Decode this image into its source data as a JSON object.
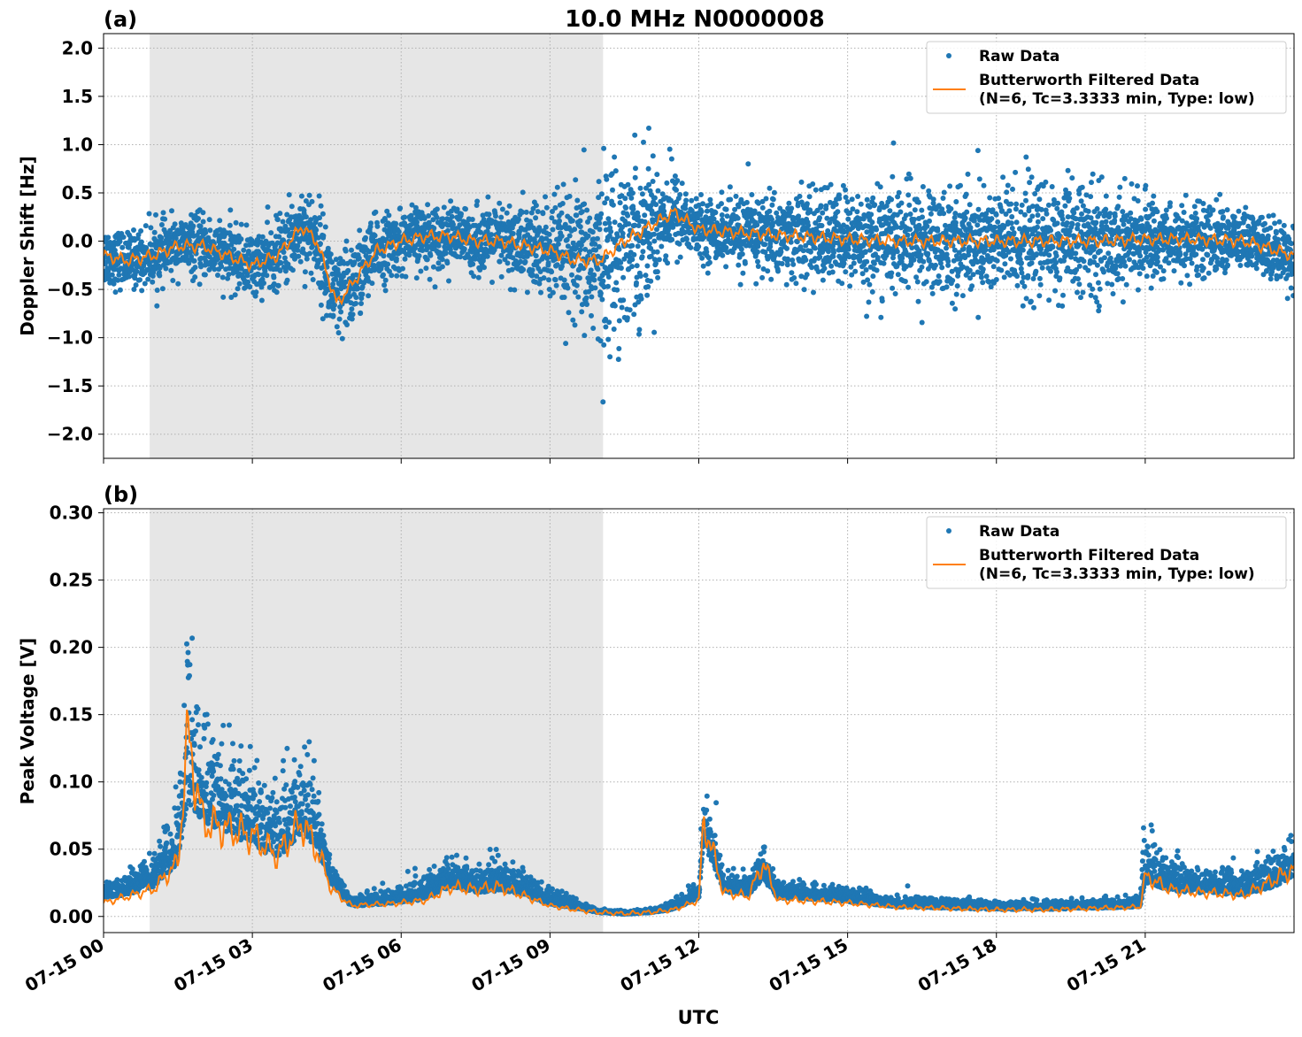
{
  "figure": {
    "title": "10.0 MHz N0000008",
    "xlabel": "UTC",
    "x_tick_labels": [
      "07-15 00",
      "07-15 03",
      "07-15 06",
      "07-15 09",
      "07-15 12",
      "07-15 15",
      "07-15 18",
      "07-15 21"
    ],
    "legend": {
      "raw": "Raw Data",
      "filt_line1": "Butterworth Filtered Data",
      "filt_line2": "(N=6, Tc=3.3333 min, Type: low)"
    },
    "colors": {
      "raw": "#1f77b4",
      "filtered": "#ff7f0e",
      "night_shade": "#e6e6e6"
    }
  },
  "chart_data": [
    {
      "panel_label": "(a)",
      "type": "scatter",
      "ylabel": "Doppler Shift [Hz]",
      "xlim_hours_utc": [
        0,
        24
      ],
      "ylim": [
        -2.25,
        2.15
      ],
      "yticks": [
        2.0,
        1.5,
        1.0,
        0.5,
        0.0,
        -0.5,
        -1.0,
        -1.5,
        -2.0
      ],
      "ytick_labels": [
        "2.0",
        "1.5",
        "1.0",
        "0.5",
        "0.0",
        "−0.5",
        "−1.0",
        "−1.5",
        "−2.0"
      ],
      "shaded_interval_hours_utc": [
        0.93,
        10.07
      ],
      "grid": true,
      "legend_position": "top-right",
      "series": [
        {
          "name": "Raw Data",
          "kind": "scatter",
          "note_values": "dense points spread around filtered curve",
          "x": [
            0,
            0.5,
            1,
            1.5,
            2,
            2.5,
            3,
            3.5,
            4,
            4.3,
            4.7,
            5,
            5.5,
            6,
            6.5,
            7,
            7.5,
            8,
            8.5,
            9,
            9.5,
            10,
            10.5,
            11,
            11.5,
            12,
            13,
            14,
            15,
            16,
            17,
            18,
            19,
            20,
            21,
            22,
            23,
            24
          ],
          "spread": [
            0.35,
            0.3,
            0.35,
            0.3,
            0.35,
            0.35,
            0.35,
            0.4,
            0.45,
            0.5,
            0.55,
            0.5,
            0.4,
            0.35,
            0.35,
            0.35,
            0.35,
            0.4,
            0.5,
            0.6,
            0.7,
            1.0,
            1.0,
            0.8,
            0.5,
            0.3,
            0.45,
            0.5,
            0.55,
            0.6,
            0.6,
            0.65,
            0.65,
            0.6,
            0.45,
            0.4,
            0.35,
            0.35
          ]
        },
        {
          "name": "Butterworth Filtered Data (N=6, Tc=3.3333 min, Type: low)",
          "kind": "line",
          "x": [
            0,
            0.5,
            1,
            1.5,
            2,
            2.5,
            3,
            3.5,
            4,
            4.3,
            4.7,
            5,
            5.5,
            6,
            6.5,
            7,
            7.5,
            8,
            8.5,
            9,
            9.5,
            10,
            10.5,
            11,
            11.5,
            12,
            13,
            14,
            15,
            16,
            17,
            18,
            19,
            20,
            21,
            22,
            23,
            24
          ],
          "y": [
            -0.15,
            -0.2,
            -0.15,
            -0.05,
            -0.05,
            -0.15,
            -0.25,
            -0.15,
            0.15,
            0.0,
            -0.65,
            -0.45,
            -0.1,
            0.0,
            0.05,
            0.05,
            0.0,
            0.0,
            -0.05,
            -0.1,
            -0.2,
            -0.2,
            0.0,
            0.15,
            0.3,
            0.12,
            0.08,
            0.05,
            0.02,
            0.0,
            0.0,
            0.0,
            0.0,
            0.0,
            0.02,
            0.02,
            0.0,
            -0.15
          ]
        }
      ]
    },
    {
      "panel_label": "(b)",
      "type": "scatter",
      "ylabel": "Peak Voltage [V]",
      "xlim_hours_utc": [
        0,
        24
      ],
      "ylim": [
        -0.012,
        0.303
      ],
      "yticks": [
        0.3,
        0.25,
        0.2,
        0.15,
        0.1,
        0.05,
        0.0
      ],
      "ytick_labels": [
        "0.30",
        "0.25",
        "0.20",
        "0.15",
        "0.10",
        "0.05",
        "0.00"
      ],
      "shaded_interval_hours_utc": [
        0.93,
        10.07
      ],
      "grid": true,
      "legend_position": "top-right",
      "series": [
        {
          "name": "Raw Data",
          "kind": "scatter",
          "x": [
            0,
            0.5,
            1,
            1.5,
            1.7,
            2,
            2.5,
            3,
            3.5,
            4,
            4.3,
            4.6,
            5,
            5.5,
            6,
            6.5,
            7,
            7.5,
            8,
            8.5,
            9,
            9.5,
            10,
            10.5,
            11,
            11.5,
            12,
            12.1,
            12.5,
            13,
            13.3,
            13.6,
            14,
            15,
            16,
            17,
            18,
            19,
            20,
            20.9,
            21,
            21.5,
            22,
            23,
            24
          ],
          "y": [
            0.015,
            0.018,
            0.025,
            0.045,
            0.1,
            0.08,
            0.07,
            0.06,
            0.05,
            0.07,
            0.055,
            0.025,
            0.008,
            0.01,
            0.012,
            0.015,
            0.025,
            0.02,
            0.022,
            0.018,
            0.01,
            0.007,
            0.003,
            0.002,
            0.003,
            0.006,
            0.015,
            0.06,
            0.02,
            0.018,
            0.03,
            0.015,
            0.015,
            0.012,
            0.008,
            0.007,
            0.006,
            0.006,
            0.007,
            0.008,
            0.03,
            0.022,
            0.02,
            0.018,
            0.03
          ],
          "spread": [
            0.01,
            0.012,
            0.02,
            0.04,
            0.1,
            0.06,
            0.06,
            0.05,
            0.05,
            0.05,
            0.04,
            0.015,
            0.005,
            0.008,
            0.01,
            0.015,
            0.02,
            0.015,
            0.02,
            0.015,
            0.01,
            0.005,
            0.002,
            0.002,
            0.002,
            0.005,
            0.01,
            0.04,
            0.012,
            0.012,
            0.02,
            0.01,
            0.01,
            0.008,
            0.006,
            0.006,
            0.005,
            0.005,
            0.006,
            0.006,
            0.03,
            0.02,
            0.015,
            0.015,
            0.025
          ]
        },
        {
          "name": "Butterworth Filtered Data (N=6, Tc=3.3333 min, Type: low)",
          "kind": "line",
          "x": [
            0,
            0.5,
            1,
            1.5,
            1.7,
            2,
            2.5,
            3,
            3.5,
            4,
            4.3,
            4.6,
            5,
            5.5,
            6,
            6.5,
            7,
            7.5,
            8,
            8.5,
            9,
            9.5,
            10,
            10.5,
            11,
            11.5,
            12,
            12.1,
            12.5,
            13,
            13.3,
            13.6,
            14,
            15,
            16,
            17,
            18,
            19,
            20,
            20.9,
            21,
            21.5,
            22,
            23,
            24
          ],
          "y": [
            0.01,
            0.015,
            0.02,
            0.04,
            0.135,
            0.07,
            0.065,
            0.06,
            0.045,
            0.07,
            0.05,
            0.02,
            0.008,
            0.009,
            0.01,
            0.012,
            0.022,
            0.02,
            0.022,
            0.015,
            0.008,
            0.005,
            0.003,
            0.002,
            0.003,
            0.005,
            0.012,
            0.072,
            0.018,
            0.015,
            0.04,
            0.012,
            0.012,
            0.01,
            0.007,
            0.006,
            0.005,
            0.005,
            0.006,
            0.007,
            0.03,
            0.02,
            0.018,
            0.016,
            0.035
          ]
        }
      ]
    }
  ]
}
